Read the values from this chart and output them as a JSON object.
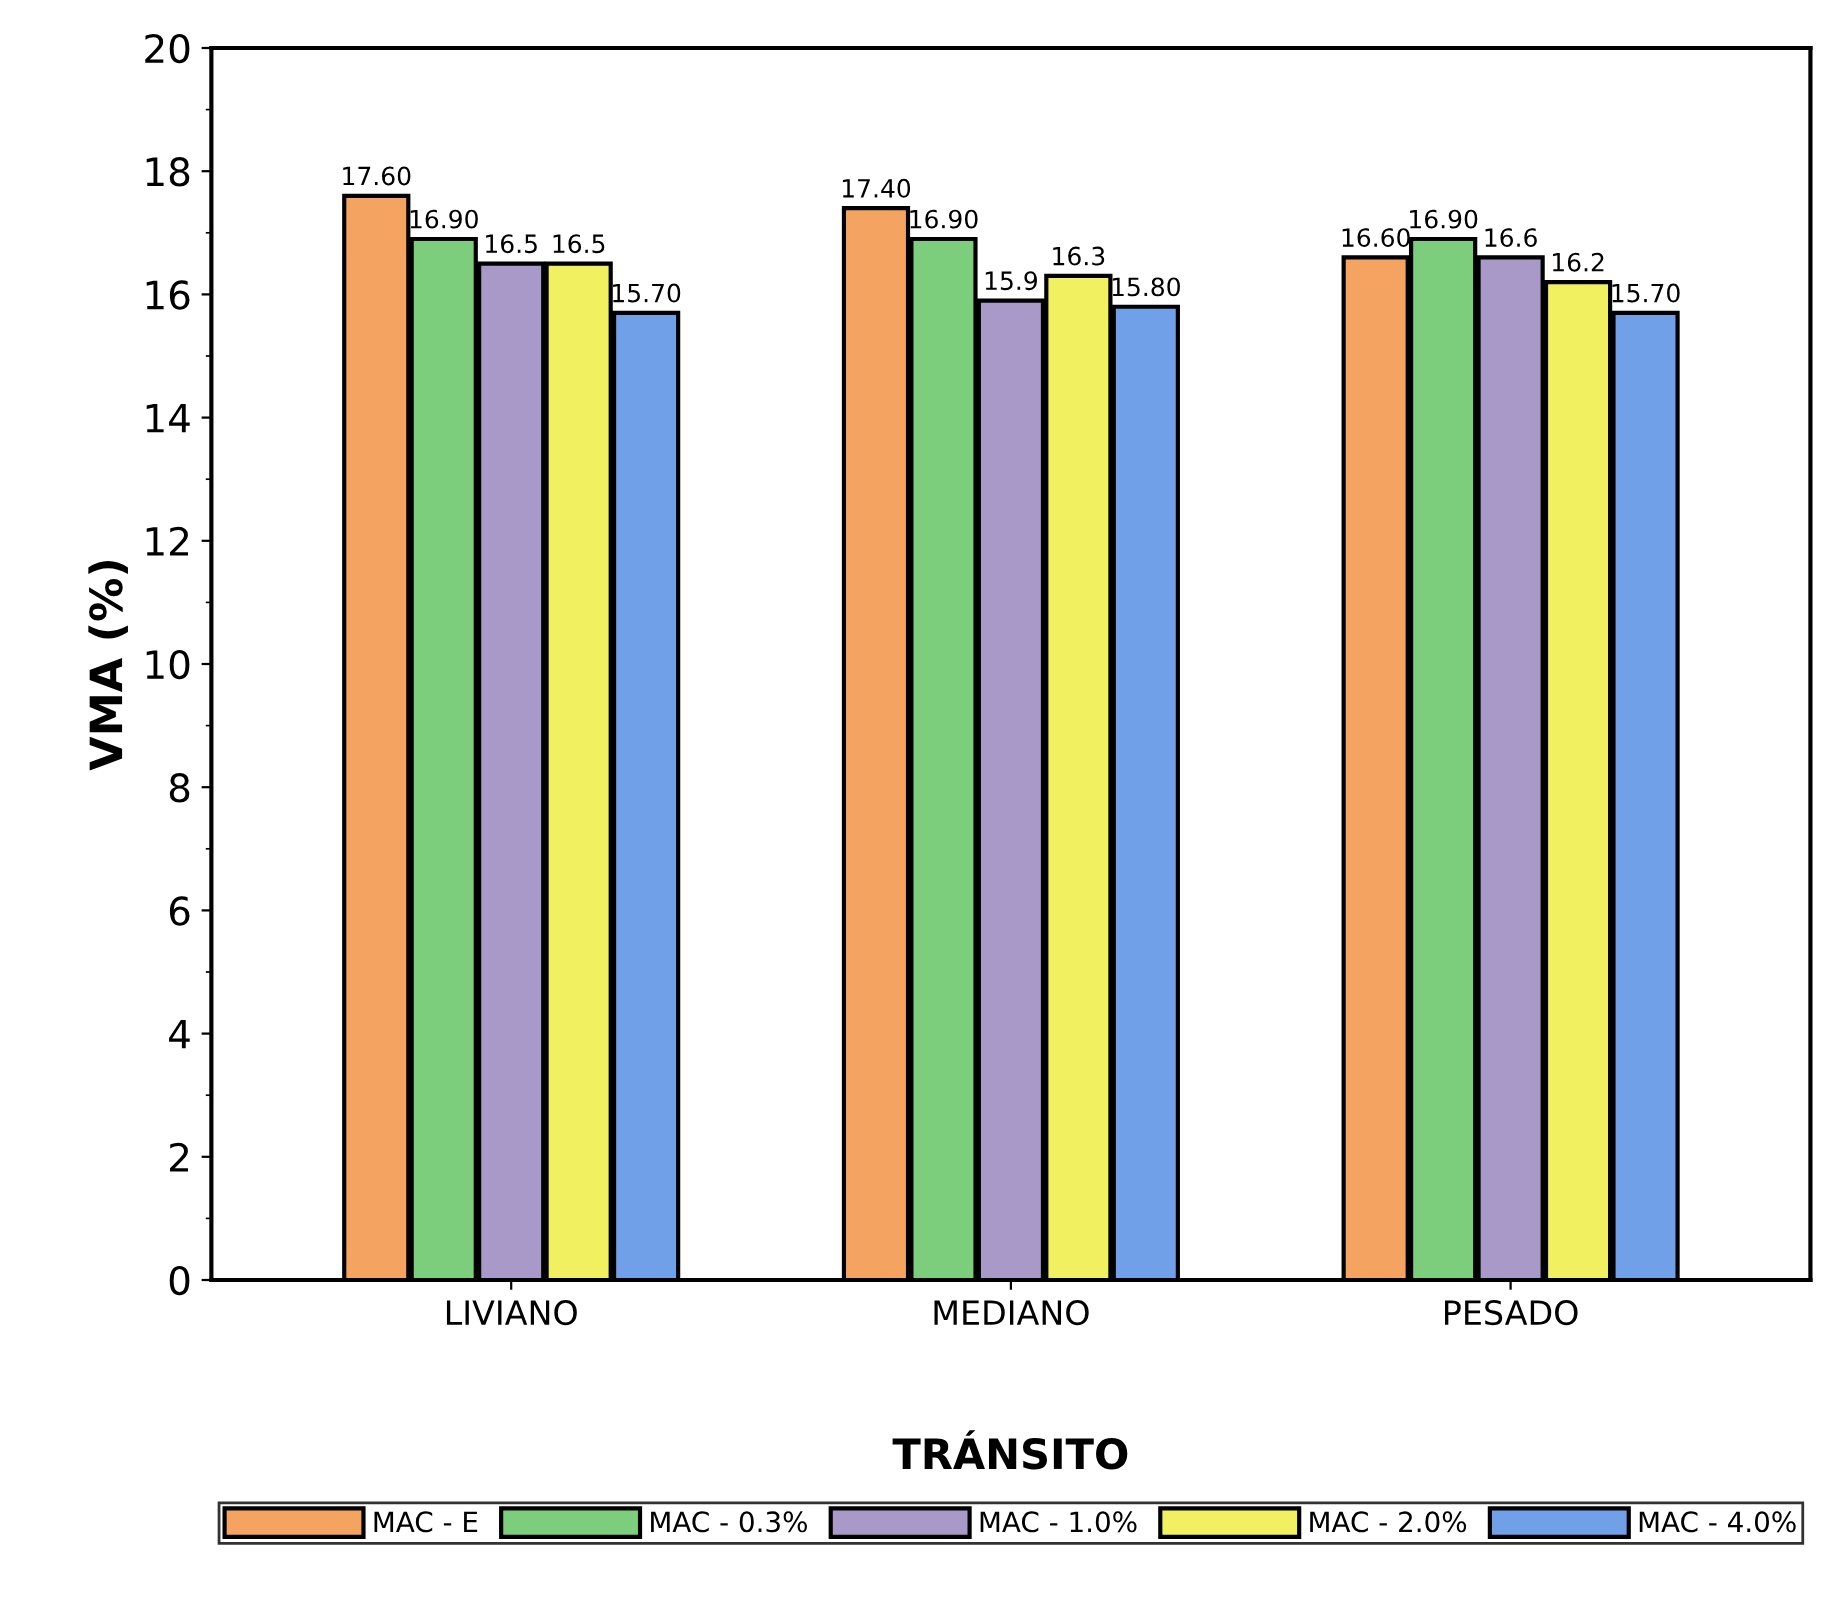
{
  "chart_data": {
    "type": "bar",
    "xlabel": "TRÁNSITO",
    "ylabel": "VMA (%)",
    "categories": [
      "LIVIANO",
      "MEDIANO",
      "PESADO"
    ],
    "series": [
      {
        "name": "MAC - E",
        "color": "#f4a460",
        "values": [
          17.6,
          17.4,
          16.6
        ],
        "value_labels": [
          "17.60",
          "17.40",
          "16.60"
        ]
      },
      {
        "name": "MAC - 0.3%",
        "color": "#7ccd7c",
        "values": [
          16.9,
          16.9,
          16.9
        ],
        "value_labels": [
          "16.90",
          "16.90",
          "16.90"
        ]
      },
      {
        "name": "MAC - 1.0%",
        "color": "#a899c8",
        "values": [
          16.5,
          15.9,
          16.6
        ],
        "value_labels": [
          "16.5",
          "15.9",
          "16.6"
        ]
      },
      {
        "name": "MAC - 2.0%",
        "color": "#f0f060",
        "values": [
          16.5,
          16.3,
          16.2
        ],
        "value_labels": [
          "16.5",
          "16.3",
          "16.2"
        ]
      },
      {
        "name": "MAC - 4.0%",
        "color": "#6fa0e8",
        "values": [
          15.7,
          15.8,
          15.7
        ],
        "value_labels": [
          "15.70",
          "15.80",
          "15.70"
        ]
      }
    ],
    "ylim": [
      0,
      20
    ],
    "yticks": [
      0,
      2,
      4,
      6,
      8,
      10,
      12,
      14,
      16,
      18,
      20
    ],
    "grid": false,
    "legend": "bottom"
  }
}
